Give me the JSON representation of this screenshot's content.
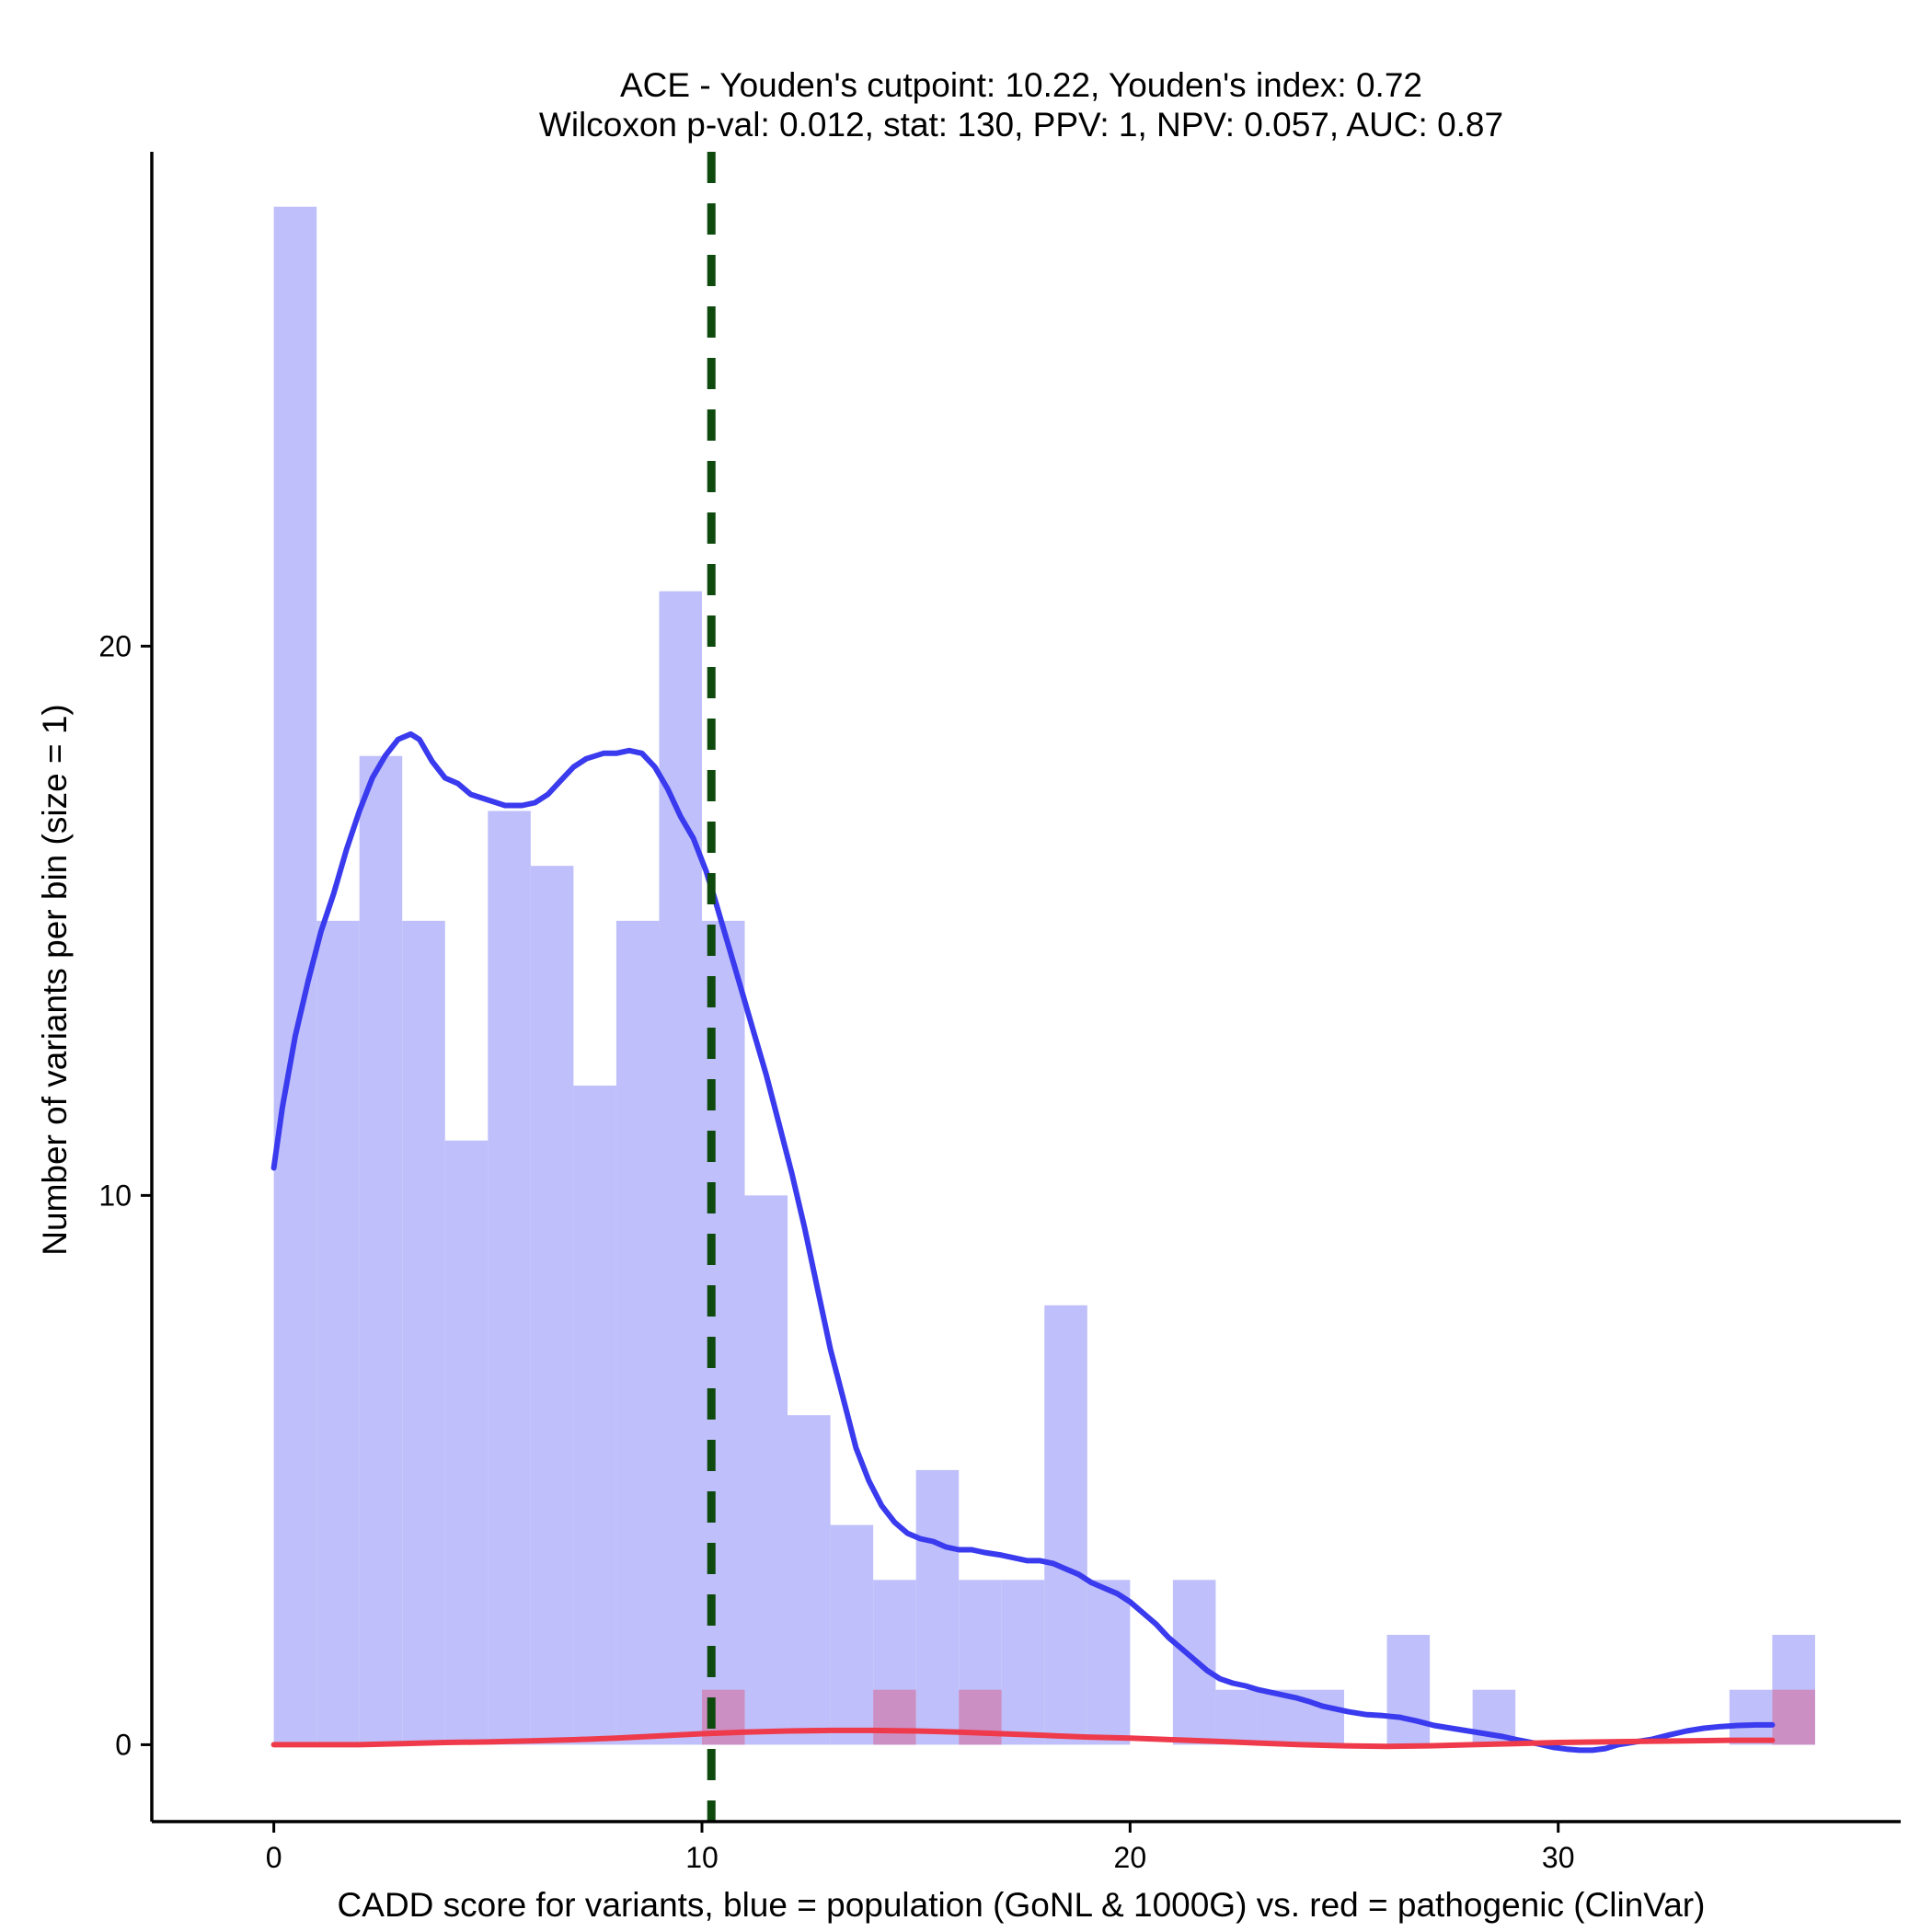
{
  "chart_data": {
    "type": "bar",
    "title_line1": "ACE - Youden's cutpoint: 10.22, Youden's index: 0.72",
    "title_line2": "Wilcoxon p-val: 0.012, stat: 130, PPV: 1, NPV: 0.057, AUC: 0.87",
    "xlabel": "CADD score for variants, blue = population (GoNL & 1000G) vs. red = pathogenic (ClinVar)",
    "ylabel": "Number of variants per bin (size = 1)",
    "xlim": [
      -2.85,
      38.0
    ],
    "ylim": [
      -1.4,
      29.0
    ],
    "x_ticks": [
      0,
      10,
      20,
      30
    ],
    "y_ticks": [
      0,
      10,
      20
    ],
    "bin_size": 1,
    "cutpoint": 10.22,
    "colors": {
      "population_bar": "#bfbffb",
      "pathogenic_bar": "#cc8fc4",
      "population_line": "#3a3aee",
      "pathogenic_line": "#ee3a4a",
      "cutpoint_line": "#0e4a0e"
    },
    "series": [
      {
        "name": "population (GoNL & 1000G)",
        "bins": [
          {
            "x0": 0,
            "x1": 1,
            "count": 28
          },
          {
            "x0": 1,
            "x1": 2,
            "count": 15
          },
          {
            "x0": 2,
            "x1": 3,
            "count": 18
          },
          {
            "x0": 3,
            "x1": 4,
            "count": 15
          },
          {
            "x0": 4,
            "x1": 5,
            "count": 11
          },
          {
            "x0": 5,
            "x1": 6,
            "count": 17
          },
          {
            "x0": 6,
            "x1": 7,
            "count": 16
          },
          {
            "x0": 7,
            "x1": 8,
            "count": 12
          },
          {
            "x0": 8,
            "x1": 9,
            "count": 15
          },
          {
            "x0": 9,
            "x1": 10,
            "count": 21
          },
          {
            "x0": 10,
            "x1": 11,
            "count": 15
          },
          {
            "x0": 11,
            "x1": 12,
            "count": 10
          },
          {
            "x0": 12,
            "x1": 13,
            "count": 6
          },
          {
            "x0": 13,
            "x1": 14,
            "count": 4
          },
          {
            "x0": 14,
            "x1": 15,
            "count": 3
          },
          {
            "x0": 15,
            "x1": 16,
            "count": 5
          },
          {
            "x0": 16,
            "x1": 17,
            "count": 3
          },
          {
            "x0": 17,
            "x1": 18,
            "count": 3
          },
          {
            "x0": 18,
            "x1": 19,
            "count": 8
          },
          {
            "x0": 19,
            "x1": 20,
            "count": 3
          },
          {
            "x0": 21,
            "x1": 22,
            "count": 3
          },
          {
            "x0": 22,
            "x1": 23,
            "count": 1
          },
          {
            "x0": 23,
            "x1": 24,
            "count": 1
          },
          {
            "x0": 24,
            "x1": 25,
            "count": 1
          },
          {
            "x0": 26,
            "x1": 27,
            "count": 2
          },
          {
            "x0": 28,
            "x1": 29,
            "count": 1
          },
          {
            "x0": 34,
            "x1": 35,
            "count": 1
          },
          {
            "x0": 35,
            "x1": 36,
            "count": 2
          }
        ],
        "density": [
          [
            0.0,
            10.5
          ],
          [
            0.2,
            11.6
          ],
          [
            0.5,
            12.9
          ],
          [
            0.8,
            13.9
          ],
          [
            1.1,
            14.8
          ],
          [
            1.4,
            15.5
          ],
          [
            1.7,
            16.3
          ],
          [
            2.0,
            17.0
          ],
          [
            2.3,
            17.6
          ],
          [
            2.6,
            18.0
          ],
          [
            2.9,
            18.3
          ],
          [
            3.2,
            18.4
          ],
          [
            3.4,
            18.3
          ],
          [
            3.7,
            17.9
          ],
          [
            4.0,
            17.6
          ],
          [
            4.3,
            17.5
          ],
          [
            4.6,
            17.3
          ],
          [
            5.0,
            17.2
          ],
          [
            5.4,
            17.1
          ],
          [
            5.8,
            17.1
          ],
          [
            6.1,
            17.15
          ],
          [
            6.4,
            17.3
          ],
          [
            6.7,
            17.55
          ],
          [
            7.0,
            17.8
          ],
          [
            7.3,
            17.95
          ],
          [
            7.7,
            18.05
          ],
          [
            8.0,
            18.05
          ],
          [
            8.3,
            18.1
          ],
          [
            8.6,
            18.05
          ],
          [
            8.9,
            17.8
          ],
          [
            9.2,
            17.4
          ],
          [
            9.5,
            16.9
          ],
          [
            9.8,
            16.5
          ],
          [
            10.1,
            15.9
          ],
          [
            10.3,
            15.4
          ],
          [
            10.6,
            14.6
          ],
          [
            10.9,
            13.8
          ],
          [
            11.2,
            13.0
          ],
          [
            11.5,
            12.2
          ],
          [
            11.8,
            11.3
          ],
          [
            12.1,
            10.4
          ],
          [
            12.4,
            9.4
          ],
          [
            12.7,
            8.3
          ],
          [
            13.0,
            7.2
          ],
          [
            13.3,
            6.3
          ],
          [
            13.6,
            5.4
          ],
          [
            13.9,
            4.8
          ],
          [
            14.2,
            4.35
          ],
          [
            14.5,
            4.05
          ],
          [
            14.8,
            3.85
          ],
          [
            15.1,
            3.75
          ],
          [
            15.4,
            3.7
          ],
          [
            15.7,
            3.6
          ],
          [
            16.0,
            3.55
          ],
          [
            16.3,
            3.55
          ],
          [
            16.6,
            3.5
          ],
          [
            17.0,
            3.45
          ],
          [
            17.3,
            3.4
          ],
          [
            17.6,
            3.35
          ],
          [
            17.9,
            3.35
          ],
          [
            18.2,
            3.3
          ],
          [
            18.5,
            3.2
          ],
          [
            18.8,
            3.1
          ],
          [
            19.1,
            2.95
          ],
          [
            19.4,
            2.85
          ],
          [
            19.7,
            2.75
          ],
          [
            20.0,
            2.6
          ],
          [
            20.3,
            2.4
          ],
          [
            20.6,
            2.2
          ],
          [
            20.9,
            1.95
          ],
          [
            21.2,
            1.75
          ],
          [
            21.5,
            1.55
          ],
          [
            21.8,
            1.35
          ],
          [
            22.1,
            1.2
          ],
          [
            22.4,
            1.12
          ],
          [
            22.7,
            1.07
          ],
          [
            23.0,
            1.0
          ],
          [
            23.3,
            0.95
          ],
          [
            23.6,
            0.9
          ],
          [
            23.9,
            0.85
          ],
          [
            24.2,
            0.78
          ],
          [
            24.5,
            0.7
          ],
          [
            24.8,
            0.65
          ],
          [
            25.1,
            0.6
          ],
          [
            25.5,
            0.55
          ],
          [
            25.9,
            0.53
          ],
          [
            26.3,
            0.5
          ],
          [
            26.7,
            0.43
          ],
          [
            27.1,
            0.35
          ],
          [
            27.5,
            0.3
          ],
          [
            27.9,
            0.25
          ],
          [
            28.3,
            0.2
          ],
          [
            28.7,
            0.15
          ],
          [
            29.1,
            0.08
          ],
          [
            29.5,
            0.02
          ],
          [
            29.9,
            -0.05
          ],
          [
            30.2,
            -0.08
          ],
          [
            30.5,
            -0.1
          ],
          [
            30.8,
            -0.1
          ],
          [
            31.1,
            -0.07
          ],
          [
            31.4,
            0.0
          ],
          [
            31.8,
            0.05
          ],
          [
            32.2,
            0.1
          ],
          [
            32.6,
            0.18
          ],
          [
            33.0,
            0.25
          ],
          [
            33.4,
            0.3
          ],
          [
            33.8,
            0.33
          ],
          [
            34.2,
            0.35
          ],
          [
            34.6,
            0.36
          ],
          [
            35.0,
            0.36
          ]
        ]
      },
      {
        "name": "pathogenic (ClinVar)",
        "bins": [
          {
            "x0": 10,
            "x1": 11,
            "count": 1
          },
          {
            "x0": 14,
            "x1": 15,
            "count": 1
          },
          {
            "x0": 16,
            "x1": 17,
            "count": 1
          },
          {
            "x0": 35,
            "x1": 36,
            "count": 1
          }
        ],
        "density": [
          [
            0.0,
            0.0
          ],
          [
            1.0,
            0.0
          ],
          [
            2.0,
            0.0
          ],
          [
            3.0,
            0.02
          ],
          [
            4.0,
            0.04
          ],
          [
            5.0,
            0.05
          ],
          [
            6.0,
            0.07
          ],
          [
            7.0,
            0.09
          ],
          [
            8.0,
            0.12
          ],
          [
            9.0,
            0.16
          ],
          [
            10.0,
            0.2
          ],
          [
            11.0,
            0.23
          ],
          [
            12.0,
            0.25
          ],
          [
            13.0,
            0.26
          ],
          [
            14.0,
            0.26
          ],
          [
            15.0,
            0.25
          ],
          [
            16.0,
            0.23
          ],
          [
            17.0,
            0.2
          ],
          [
            18.0,
            0.17
          ],
          [
            19.0,
            0.14
          ],
          [
            20.0,
            0.12
          ],
          [
            21.0,
            0.09
          ],
          [
            22.0,
            0.06
          ],
          [
            23.0,
            0.03
          ],
          [
            24.0,
            0.0
          ],
          [
            25.0,
            -0.02
          ],
          [
            26.0,
            -0.03
          ],
          [
            27.0,
            -0.02
          ],
          [
            28.0,
            0.0
          ],
          [
            29.0,
            0.02
          ],
          [
            30.0,
            0.04
          ],
          [
            31.0,
            0.05
          ],
          [
            32.0,
            0.06
          ],
          [
            33.0,
            0.07
          ],
          [
            34.0,
            0.08
          ],
          [
            35.0,
            0.08
          ]
        ]
      }
    ]
  }
}
